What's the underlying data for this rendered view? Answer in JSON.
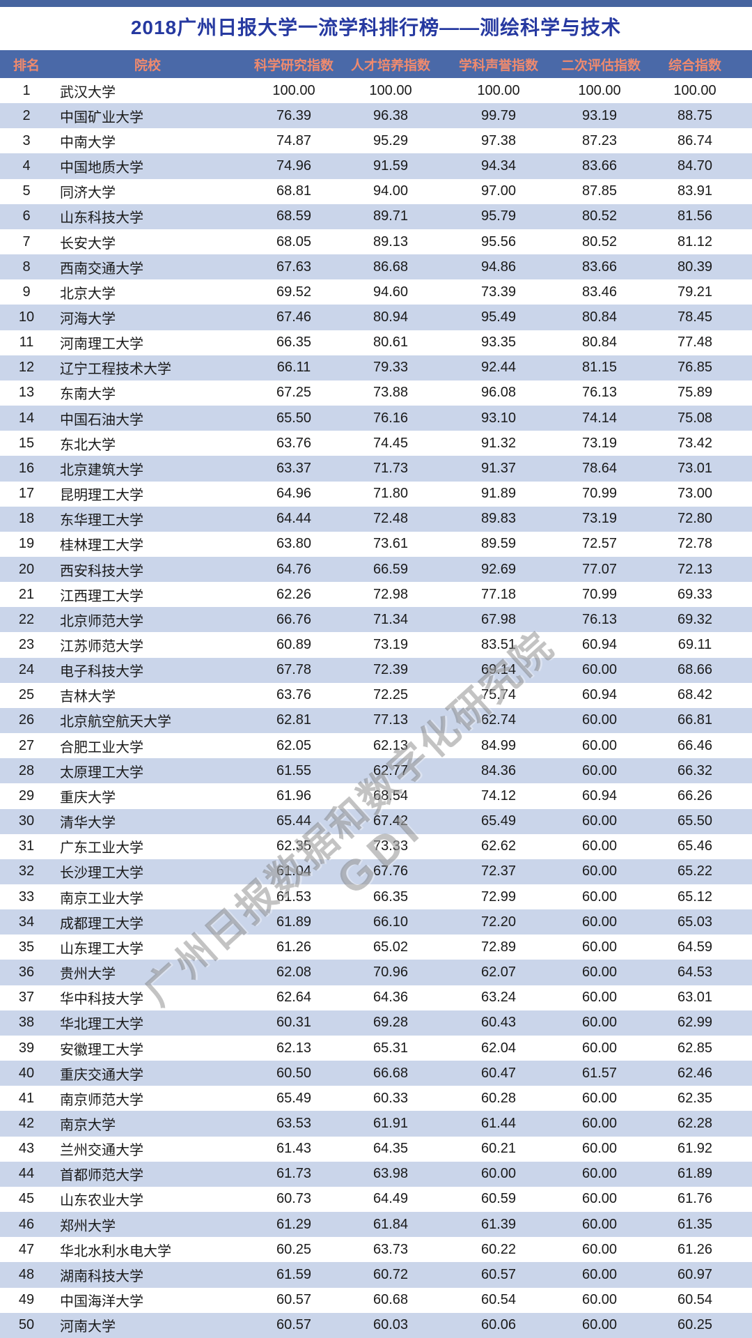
{
  "page": {
    "title": "2018广州日报大学一流学科排行榜——测绘科学与技术",
    "watermark": {
      "line1": "广州日报数据和数字化研究院",
      "line2": "GDI"
    }
  },
  "colors": {
    "top_bar": "#46649f",
    "header_bg": "#4a69a8",
    "header_text": "#ef8a6e",
    "alt_row_bg": "#cad5ea",
    "title_text": "#2639a0"
  },
  "table": {
    "columns": [
      "排名",
      "院校",
      "科学研究指数",
      "人才培养指数",
      "学科声誉指数",
      "二次评估指数",
      "综合指数"
    ],
    "rows": [
      [
        "1",
        "武汉大学",
        "100.00",
        "100.00",
        "100.00",
        "100.00",
        "100.00"
      ],
      [
        "2",
        "中国矿业大学",
        "76.39",
        "96.38",
        "99.79",
        "93.19",
        "88.75"
      ],
      [
        "3",
        "中南大学",
        "74.87",
        "95.29",
        "97.38",
        "87.23",
        "86.74"
      ],
      [
        "4",
        "中国地质大学",
        "74.96",
        "91.59",
        "94.34",
        "83.66",
        "84.70"
      ],
      [
        "5",
        "同济大学",
        "68.81",
        "94.00",
        "97.00",
        "87.85",
        "83.91"
      ],
      [
        "6",
        "山东科技大学",
        "68.59",
        "89.71",
        "95.79",
        "80.52",
        "81.56"
      ],
      [
        "7",
        "长安大学",
        "68.05",
        "89.13",
        "95.56",
        "80.52",
        "81.12"
      ],
      [
        "8",
        "西南交通大学",
        "67.63",
        "86.68",
        "94.86",
        "83.66",
        "80.39"
      ],
      [
        "9",
        "北京大学",
        "69.52",
        "94.60",
        "73.39",
        "83.46",
        "79.21"
      ],
      [
        "10",
        "河海大学",
        "67.46",
        "80.94",
        "95.49",
        "80.84",
        "78.45"
      ],
      [
        "11",
        "河南理工大学",
        "66.35",
        "80.61",
        "93.35",
        "80.84",
        "77.48"
      ],
      [
        "12",
        "辽宁工程技术大学",
        "66.11",
        "79.33",
        "92.44",
        "81.15",
        "76.85"
      ],
      [
        "13",
        "东南大学",
        "67.25",
        "73.88",
        "96.08",
        "76.13",
        "75.89"
      ],
      [
        "14",
        "中国石油大学",
        "65.50",
        "76.16",
        "93.10",
        "74.14",
        "75.08"
      ],
      [
        "15",
        "东北大学",
        "63.76",
        "74.45",
        "91.32",
        "73.19",
        "73.42"
      ],
      [
        "16",
        "北京建筑大学",
        "63.37",
        "71.73",
        "91.37",
        "78.64",
        "73.01"
      ],
      [
        "17",
        "昆明理工大学",
        "64.96",
        "71.80",
        "91.89",
        "70.99",
        "73.00"
      ],
      [
        "18",
        "东华理工大学",
        "64.44",
        "72.48",
        "89.83",
        "73.19",
        "72.80"
      ],
      [
        "19",
        "桂林理工大学",
        "63.80",
        "73.61",
        "89.59",
        "72.57",
        "72.78"
      ],
      [
        "20",
        "西安科技大学",
        "64.76",
        "66.59",
        "92.69",
        "77.07",
        "72.13"
      ],
      [
        "21",
        "江西理工大学",
        "62.26",
        "72.98",
        "77.18",
        "70.99",
        "69.33"
      ],
      [
        "22",
        "北京师范大学",
        "66.76",
        "71.34",
        "67.98",
        "76.13",
        "69.32"
      ],
      [
        "23",
        "江苏师范大学",
        "60.89",
        "73.19",
        "83.51",
        "60.94",
        "69.11"
      ],
      [
        "24",
        "电子科技大学",
        "67.78",
        "72.39",
        "69.14",
        "60.00",
        "68.66"
      ],
      [
        "25",
        "吉林大学",
        "63.76",
        "72.25",
        "75.74",
        "60.94",
        "68.42"
      ],
      [
        "26",
        "北京航空航天大学",
        "62.81",
        "77.13",
        "62.74",
        "60.00",
        "66.81"
      ],
      [
        "27",
        "合肥工业大学",
        "62.05",
        "62.13",
        "84.99",
        "60.00",
        "66.46"
      ],
      [
        "28",
        "太原理工大学",
        "61.55",
        "62.77",
        "84.36",
        "60.00",
        "66.32"
      ],
      [
        "29",
        "重庆大学",
        "61.96",
        "68.54",
        "74.12",
        "60.94",
        "66.26"
      ],
      [
        "30",
        "清华大学",
        "65.44",
        "67.42",
        "65.49",
        "60.00",
        "65.50"
      ],
      [
        "31",
        "广东工业大学",
        "62.35",
        "73.33",
        "62.62",
        "60.00",
        "65.46"
      ],
      [
        "32",
        "长沙理工大学",
        "61.04",
        "67.76",
        "72.37",
        "60.00",
        "65.22"
      ],
      [
        "33",
        "南京工业大学",
        "61.53",
        "66.35",
        "72.99",
        "60.00",
        "65.12"
      ],
      [
        "34",
        "成都理工大学",
        "61.89",
        "66.10",
        "72.20",
        "60.00",
        "65.03"
      ],
      [
        "35",
        "山东理工大学",
        "61.26",
        "65.02",
        "72.89",
        "60.00",
        "64.59"
      ],
      [
        "36",
        "贵州大学",
        "62.08",
        "70.96",
        "62.07",
        "60.00",
        "64.53"
      ],
      [
        "37",
        "华中科技大学",
        "62.64",
        "64.36",
        "63.24",
        "60.00",
        "63.01"
      ],
      [
        "38",
        "华北理工大学",
        "60.31",
        "69.28",
        "60.43",
        "60.00",
        "62.99"
      ],
      [
        "39",
        "安徽理工大学",
        "62.13",
        "65.31",
        "62.04",
        "60.00",
        "62.85"
      ],
      [
        "40",
        "重庆交通大学",
        "60.50",
        "66.68",
        "60.47",
        "61.57",
        "62.46"
      ],
      [
        "41",
        "南京师范大学",
        "65.49",
        "60.33",
        "60.28",
        "60.00",
        "62.35"
      ],
      [
        "42",
        "南京大学",
        "63.53",
        "61.91",
        "61.44",
        "60.00",
        "62.28"
      ],
      [
        "43",
        "兰州交通大学",
        "61.43",
        "64.35",
        "60.21",
        "60.00",
        "61.92"
      ],
      [
        "44",
        "首都师范大学",
        "61.73",
        "63.98",
        "60.00",
        "60.00",
        "61.89"
      ],
      [
        "45",
        "山东农业大学",
        "60.73",
        "64.49",
        "60.59",
        "60.00",
        "61.76"
      ],
      [
        "46",
        "郑州大学",
        "61.29",
        "61.84",
        "61.39",
        "60.00",
        "61.35"
      ],
      [
        "47",
        "华北水利水电大学",
        "60.25",
        "63.73",
        "60.22",
        "60.00",
        "61.26"
      ],
      [
        "48",
        "湖南科技大学",
        "61.59",
        "60.72",
        "60.57",
        "60.00",
        "60.97"
      ],
      [
        "49",
        "中国海洋大学",
        "60.57",
        "60.68",
        "60.54",
        "60.00",
        "60.54"
      ],
      [
        "50",
        "河南大学",
        "60.57",
        "60.03",
        "60.06",
        "60.00",
        "60.25"
      ]
    ]
  }
}
